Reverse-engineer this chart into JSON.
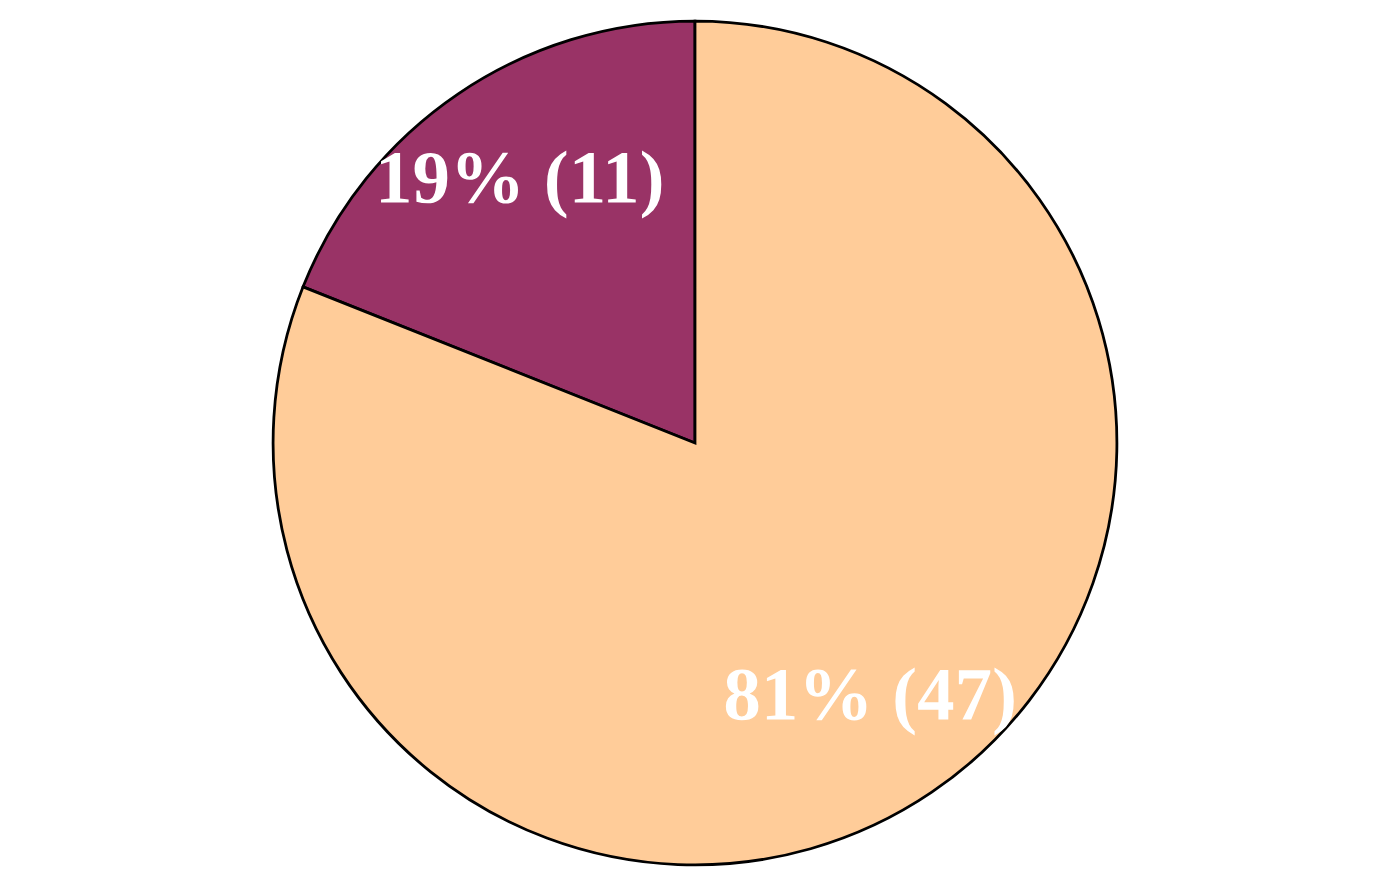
{
  "chart_data": {
    "type": "pie",
    "categories": [
      null,
      null
    ],
    "values": [
      11,
      47
    ],
    "colors": [
      "#993366",
      "#ffcc99"
    ],
    "value_labels": [
      "19% (11)",
      "81% (47)"
    ]
  }
}
